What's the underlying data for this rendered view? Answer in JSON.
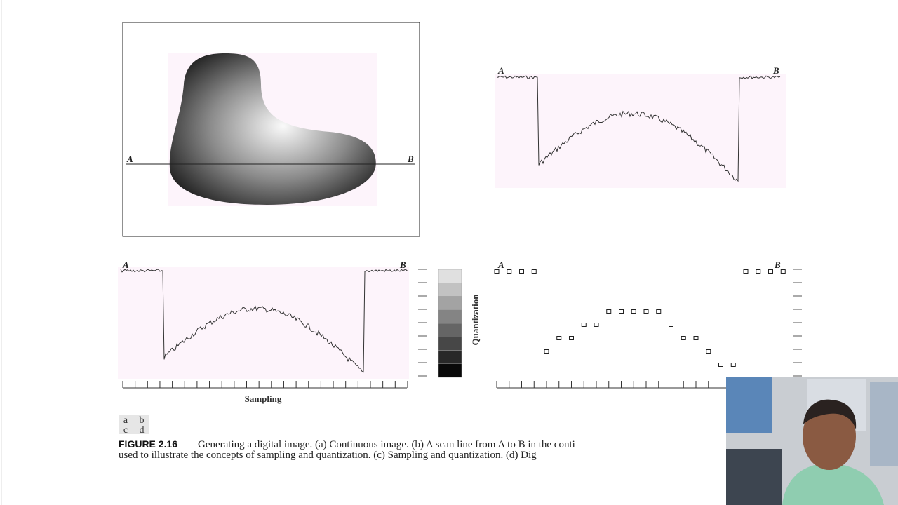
{
  "figure": {
    "panel_labels": [
      "a",
      "b",
      "c",
      "d"
    ],
    "panel_a": {
      "label_a": "A",
      "label_b": "B"
    },
    "panel_b": {
      "label_a": "A",
      "label_b": "B"
    },
    "panel_c": {
      "label_a": "A",
      "label_b": "B",
      "x_label": "Sampling",
      "y_label": "Quantization"
    },
    "panel_d": {
      "label_a": "A",
      "label_b": "B",
      "samples": [
        8,
        8,
        8,
        8,
        2,
        3,
        3,
        4,
        4,
        5,
        5,
        5,
        5,
        5,
        4,
        3,
        3,
        2,
        1,
        1,
        8,
        8,
        8,
        8
      ]
    }
  },
  "caption": {
    "figure_number": "FIGURE 2.16",
    "line1": "Generating a digital image. (a) Continuous image. (b) A scan line from A to B in the conti",
    "line2": "used to illustrate the concepts of sampling and quantization. (c) Sampling and quantization. (d) Dig"
  }
}
